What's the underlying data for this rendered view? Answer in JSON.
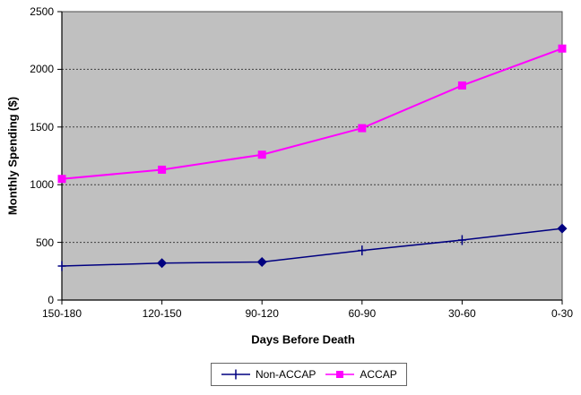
{
  "chart_data": {
    "type": "line",
    "title": "",
    "xlabel": "Days Before Death",
    "ylabel": "Monthly Spending ($)",
    "categories": [
      "150-180",
      "120-150",
      "90-120",
      "60-90",
      "30-60",
      "0-30"
    ],
    "series": [
      {
        "name": "Non-ACCAP",
        "color": "#000080",
        "marker": "plus",
        "markers": [
          "plus",
          "diamond",
          "diamond",
          "plus",
          "plus",
          "diamond"
        ],
        "values": [
          295,
          320,
          330,
          430,
          520,
          620
        ]
      },
      {
        "name": "ACCAP",
        "color": "#FF00FF",
        "marker": "square",
        "values": [
          1050,
          1130,
          1260,
          1490,
          1860,
          2180
        ]
      }
    ],
    "ylim": [
      0,
      2500
    ],
    "yticks": [
      0,
      500,
      1000,
      1500,
      2000,
      2500
    ],
    "grid": "horizontal-dashed",
    "legend_position": "bottom",
    "plot_bg": "#C0C0C0",
    "gridline_color": "#404040",
    "axis_color": "#000000"
  }
}
